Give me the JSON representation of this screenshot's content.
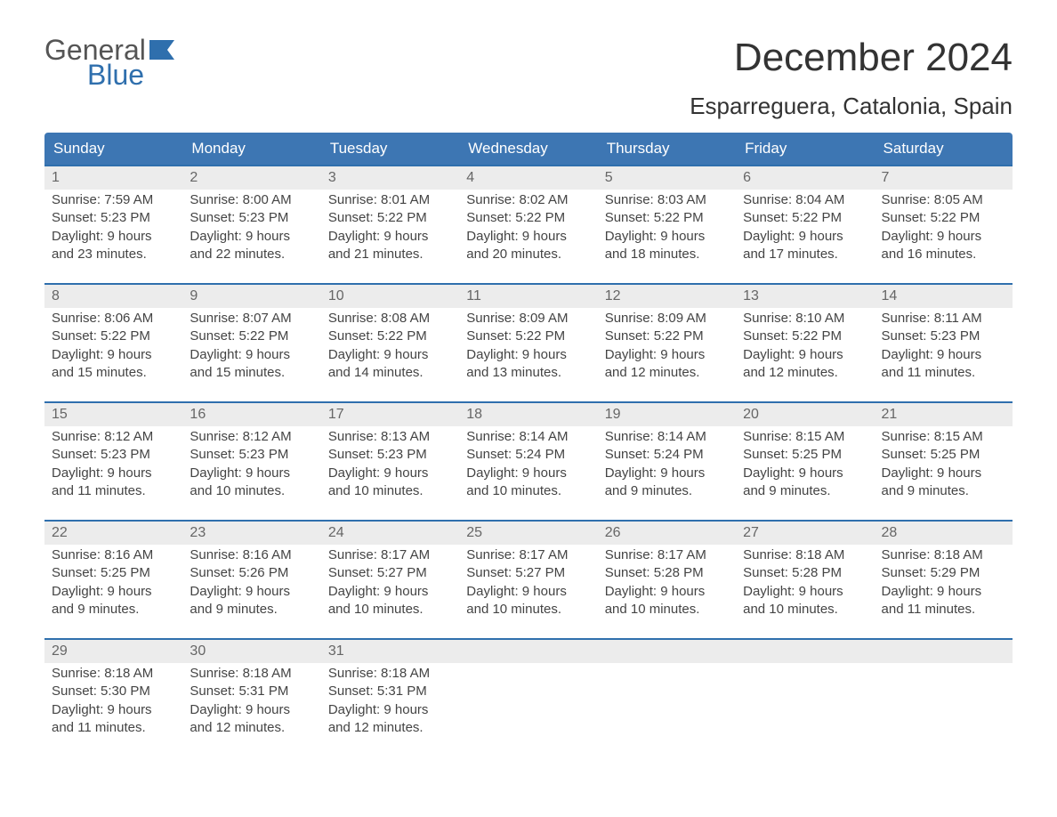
{
  "brand": {
    "top": "General",
    "bottom": "Blue"
  },
  "title": "December 2024",
  "location": "Esparreguera, Catalonia, Spain",
  "colors": {
    "header_bg": "#3d76b3",
    "header_text": "#ffffff",
    "week_border": "#2f6fad",
    "daynum_bg": "#ececec",
    "daynum_text": "#666666",
    "body_text": "#444444",
    "page_bg": "#ffffff",
    "brand_gray": "#555555",
    "brand_blue": "#2f6fad"
  },
  "day_names": [
    "Sunday",
    "Monday",
    "Tuesday",
    "Wednesday",
    "Thursday",
    "Friday",
    "Saturday"
  ],
  "labels": {
    "sunrise": "Sunrise:",
    "sunset": "Sunset:",
    "daylight": "Daylight:"
  },
  "weeks": [
    [
      {
        "n": "1",
        "sunrise": "7:59 AM",
        "sunset": "5:23 PM",
        "dl": "9 hours and 23 minutes."
      },
      {
        "n": "2",
        "sunrise": "8:00 AM",
        "sunset": "5:23 PM",
        "dl": "9 hours and 22 minutes."
      },
      {
        "n": "3",
        "sunrise": "8:01 AM",
        "sunset": "5:22 PM",
        "dl": "9 hours and 21 minutes."
      },
      {
        "n": "4",
        "sunrise": "8:02 AM",
        "sunset": "5:22 PM",
        "dl": "9 hours and 20 minutes."
      },
      {
        "n": "5",
        "sunrise": "8:03 AM",
        "sunset": "5:22 PM",
        "dl": "9 hours and 18 minutes."
      },
      {
        "n": "6",
        "sunrise": "8:04 AM",
        "sunset": "5:22 PM",
        "dl": "9 hours and 17 minutes."
      },
      {
        "n": "7",
        "sunrise": "8:05 AM",
        "sunset": "5:22 PM",
        "dl": "9 hours and 16 minutes."
      }
    ],
    [
      {
        "n": "8",
        "sunrise": "8:06 AM",
        "sunset": "5:22 PM",
        "dl": "9 hours and 15 minutes."
      },
      {
        "n": "9",
        "sunrise": "8:07 AM",
        "sunset": "5:22 PM",
        "dl": "9 hours and 15 minutes."
      },
      {
        "n": "10",
        "sunrise": "8:08 AM",
        "sunset": "5:22 PM",
        "dl": "9 hours and 14 minutes."
      },
      {
        "n": "11",
        "sunrise": "8:09 AM",
        "sunset": "5:22 PM",
        "dl": "9 hours and 13 minutes."
      },
      {
        "n": "12",
        "sunrise": "8:09 AM",
        "sunset": "5:22 PM",
        "dl": "9 hours and 12 minutes."
      },
      {
        "n": "13",
        "sunrise": "8:10 AM",
        "sunset": "5:22 PM",
        "dl": "9 hours and 12 minutes."
      },
      {
        "n": "14",
        "sunrise": "8:11 AM",
        "sunset": "5:23 PM",
        "dl": "9 hours and 11 minutes."
      }
    ],
    [
      {
        "n": "15",
        "sunrise": "8:12 AM",
        "sunset": "5:23 PM",
        "dl": "9 hours and 11 minutes."
      },
      {
        "n": "16",
        "sunrise": "8:12 AM",
        "sunset": "5:23 PM",
        "dl": "9 hours and 10 minutes."
      },
      {
        "n": "17",
        "sunrise": "8:13 AM",
        "sunset": "5:23 PM",
        "dl": "9 hours and 10 minutes."
      },
      {
        "n": "18",
        "sunrise": "8:14 AM",
        "sunset": "5:24 PM",
        "dl": "9 hours and 10 minutes."
      },
      {
        "n": "19",
        "sunrise": "8:14 AM",
        "sunset": "5:24 PM",
        "dl": "9 hours and 9 minutes."
      },
      {
        "n": "20",
        "sunrise": "8:15 AM",
        "sunset": "5:25 PM",
        "dl": "9 hours and 9 minutes."
      },
      {
        "n": "21",
        "sunrise": "8:15 AM",
        "sunset": "5:25 PM",
        "dl": "9 hours and 9 minutes."
      }
    ],
    [
      {
        "n": "22",
        "sunrise": "8:16 AM",
        "sunset": "5:25 PM",
        "dl": "9 hours and 9 minutes."
      },
      {
        "n": "23",
        "sunrise": "8:16 AM",
        "sunset": "5:26 PM",
        "dl": "9 hours and 9 minutes."
      },
      {
        "n": "24",
        "sunrise": "8:17 AM",
        "sunset": "5:27 PM",
        "dl": "9 hours and 10 minutes."
      },
      {
        "n": "25",
        "sunrise": "8:17 AM",
        "sunset": "5:27 PM",
        "dl": "9 hours and 10 minutes."
      },
      {
        "n": "26",
        "sunrise": "8:17 AM",
        "sunset": "5:28 PM",
        "dl": "9 hours and 10 minutes."
      },
      {
        "n": "27",
        "sunrise": "8:18 AM",
        "sunset": "5:28 PM",
        "dl": "9 hours and 10 minutes."
      },
      {
        "n": "28",
        "sunrise": "8:18 AM",
        "sunset": "5:29 PM",
        "dl": "9 hours and 11 minutes."
      }
    ],
    [
      {
        "n": "29",
        "sunrise": "8:18 AM",
        "sunset": "5:30 PM",
        "dl": "9 hours and 11 minutes."
      },
      {
        "n": "30",
        "sunrise": "8:18 AM",
        "sunset": "5:31 PM",
        "dl": "9 hours and 12 minutes."
      },
      {
        "n": "31",
        "sunrise": "8:18 AM",
        "sunset": "5:31 PM",
        "dl": "9 hours and 12 minutes."
      },
      null,
      null,
      null,
      null
    ]
  ]
}
